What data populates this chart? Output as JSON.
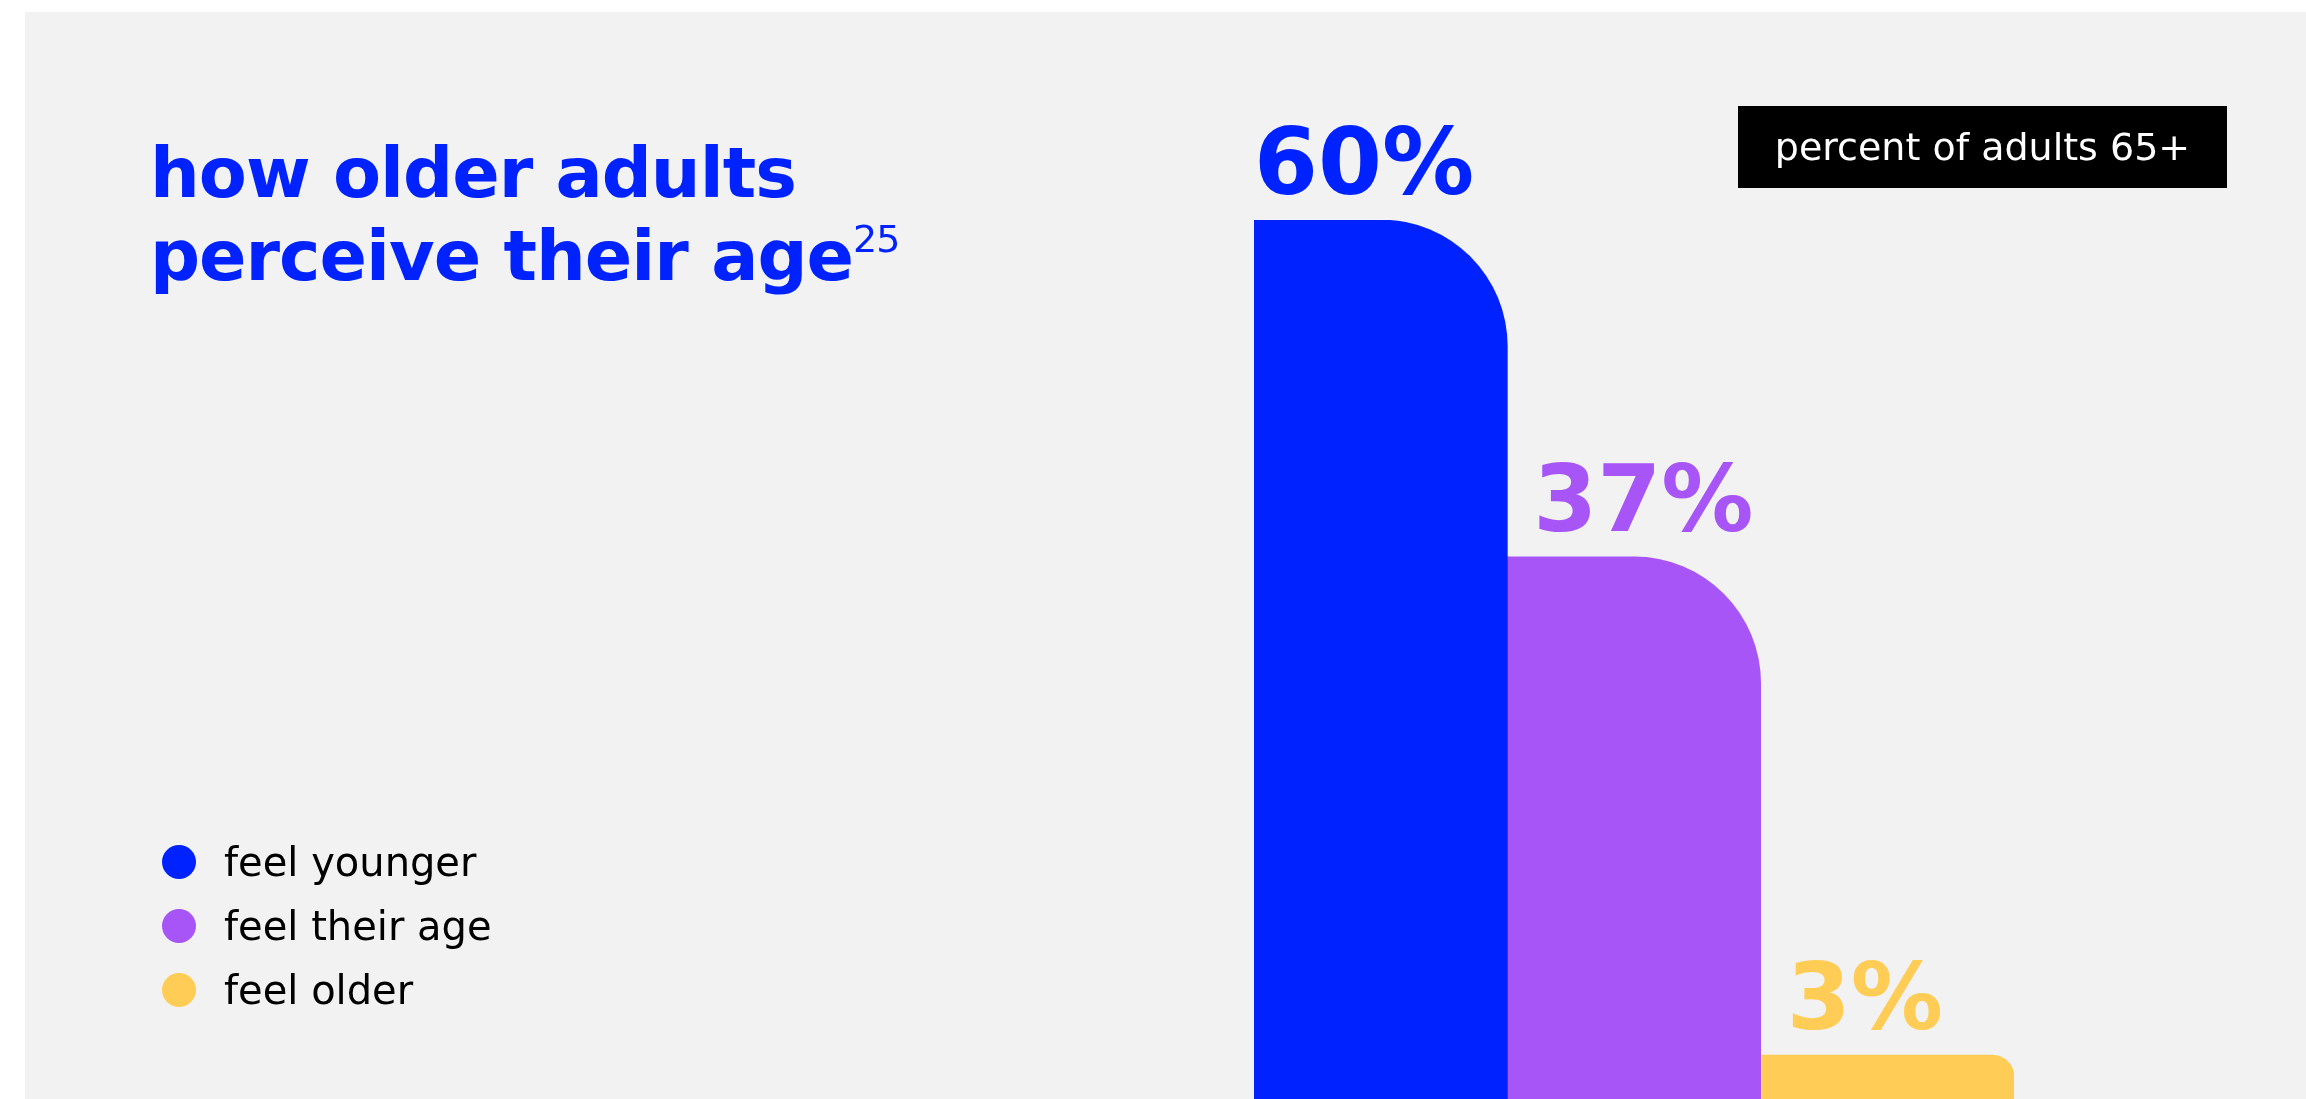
{
  "chart_data": {
    "type": "bar",
    "title": "how older adults perceive their age$^{25}$",
    "categories": [
      null,
      null,
      null
    ],
    "series": [
      {
        "name": "feel younger",
        "color": "#0022ff",
        "values": [
          60,
          null,
          null
        ],
        "value_labels": [
          "60%",
          null,
          null
        ]
      },
      {
        "name": "feel their age",
        "color": "#a855f7",
        "values": [
          null,
          37,
          null
        ],
        "value_labels": [
          null,
          "37%",
          null
        ]
      },
      {
        "name": "feel older",
        "color": "#ffcc55",
        "values": [
          null,
          null,
          3
        ],
        "value_labels": [
          null,
          null,
          "3%"
        ]
      }
    ],
    "stacked": true,
    "legend": "bottom left",
    "annotations": [
      "percent of adults 65+"
    ]
  }
}
